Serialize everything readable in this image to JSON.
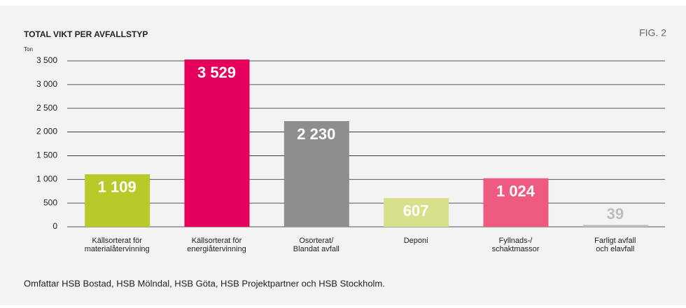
{
  "chart_data": {
    "type": "bar",
    "title": "TOTAL VIKT PER AVFALLSTYP",
    "annotation": "FIG. 2",
    "y_label": "Ton",
    "footnote": "Omfattar HSB Bostad, HSB Mölndal, HSB Göta, HSB Projektpartner och HSB Stockholm.",
    "categories": [
      "Källsorterat för\nmaterialåtervinning",
      "Källsorterat för\nenergiåtervinning",
      "Osorterat/\nBlandat avfall",
      "Deponi",
      "Fyllnads-/\nschaktmassor",
      "Farligt avfall\noch elavfall"
    ],
    "values": [
      1109,
      3529,
      2230,
      607,
      1024,
      39
    ],
    "value_labels": [
      "1 109",
      "3 529",
      "2 230",
      "607",
      "1 024",
      "39"
    ],
    "colors": [
      "#b7ca2a",
      "#e4005b",
      "#8e8e8e",
      "#d8e08c",
      "#ee5a80",
      "#bdbdbd"
    ],
    "ylim": [
      0,
      3500
    ],
    "yticks": [
      0,
      500,
      {
        "value": 1000,
        "label": "1 000"
      },
      {
        "value": 1500,
        "label": "1 500"
      },
      {
        "value": 2000,
        "label": "2 000"
      },
      {
        "value": 2500,
        "label": "2 500"
      },
      {
        "value": 3000,
        "label": "3 000"
      },
      {
        "value": 3500,
        "label": "3 500"
      }
    ],
    "grid": true
  }
}
